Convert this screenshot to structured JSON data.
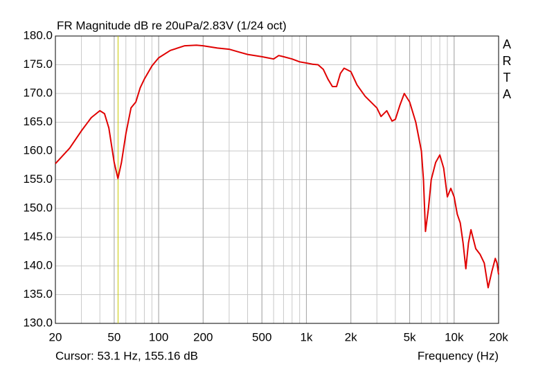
{
  "chart_data": {
    "type": "line",
    "title": "FR Magnitude dB re 20uPa/2.83V (1/24 oct)",
    "x_label": "Frequency (Hz)",
    "watermark": "ARTA",
    "cursor": {
      "label": "Cursor: 53.1 Hz, 155.16 dB",
      "x": 53.1,
      "color": "#c8c800"
    },
    "x_scale": "log",
    "grid": true,
    "color": "#e00000",
    "xlim": [
      20,
      20000
    ],
    "ylim": [
      130,
      180
    ],
    "xticks": [
      20,
      50,
      100,
      200,
      500,
      {
        "value": 1000,
        "label": "1k"
      },
      {
        "value": 2000,
        "label": "2k"
      },
      {
        "value": 5000,
        "label": "5k"
      },
      {
        "value": 10000,
        "label": "10k"
      },
      {
        "value": 20000,
        "label": "20k"
      }
    ],
    "yticks": [
      {
        "value": 130,
        "label": "130.0"
      },
      {
        "value": 135,
        "label": "135.0"
      },
      {
        "value": 140,
        "label": "140.0"
      },
      {
        "value": 145,
        "label": "145.0"
      },
      {
        "value": 150,
        "label": "150.0"
      },
      {
        "value": 155,
        "label": "155.0"
      },
      {
        "value": 160,
        "label": "160.0"
      },
      {
        "value": 165,
        "label": "165.0"
      },
      {
        "value": 170,
        "label": "170.0"
      },
      {
        "value": 175,
        "label": "175.0"
      },
      {
        "value": 180,
        "label": "180.0"
      }
    ],
    "x": [
      20,
      25,
      30,
      35,
      40,
      43,
      46,
      50,
      53,
      56,
      60,
      65,
      70,
      75,
      80,
      90,
      100,
      120,
      150,
      180,
      200,
      250,
      300,
      350,
      400,
      500,
      600,
      650,
      700,
      800,
      900,
      1000,
      1100,
      1200,
      1300,
      1400,
      1500,
      1600,
      1700,
      1800,
      2000,
      2200,
      2500,
      3000,
      3200,
      3500,
      3800,
      4000,
      4300,
      4600,
      5000,
      5500,
      6000,
      6200,
      6400,
      6700,
      7000,
      7500,
      8000,
      8500,
      9000,
      9500,
      10000,
      10500,
      11000,
      11500,
      12000,
      12500,
      13000,
      14000,
      15000,
      16000,
      17000,
      18000,
      19000,
      19500,
      20000
    ],
    "values": [
      157.8,
      160.5,
      163.5,
      165.8,
      167.0,
      166.5,
      164,
      158,
      155.2,
      158,
      163,
      167.5,
      168.5,
      171,
      172.5,
      174.8,
      176.2,
      177.5,
      178.3,
      178.4,
      178.3,
      177.9,
      177.7,
      177.2,
      176.8,
      176.4,
      176.0,
      176.6,
      176.4,
      176.0,
      175.5,
      175.3,
      175.1,
      175.0,
      174.2,
      172.5,
      171.2,
      171.2,
      173.5,
      174.4,
      173.8,
      171.5,
      169.5,
      167.5,
      166,
      167,
      165.2,
      165.5,
      168,
      170,
      168.5,
      165,
      160,
      155,
      146,
      150,
      155,
      158,
      159.3,
      157,
      152,
      153.5,
      152,
      149,
      147.5,
      144,
      139.5,
      144,
      146.3,
      143,
      142,
      140.5,
      136.2,
      139,
      141.3,
      140.5,
      138.5
    ]
  }
}
